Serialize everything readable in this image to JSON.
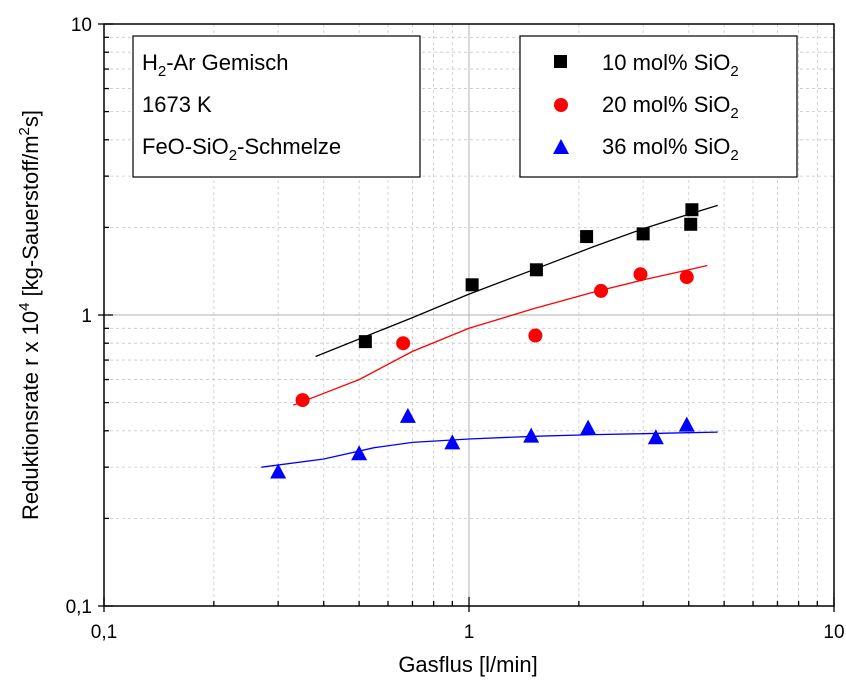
{
  "chart_data": {
    "type": "scatter",
    "xscale": "log",
    "yscale": "log",
    "xlim": [
      0.1,
      10
    ],
    "ylim": [
      0.1,
      10
    ],
    "xlabel": "Gasflus [l/min]",
    "ylabel": {
      "prefix": "Reduktionsrate r x 10",
      "exp": "4",
      "unit_prefix": " [kg-Sauerstoff/m",
      "unit_exp": "2",
      "unit_suffix": "s]"
    },
    "x_ticks": [
      {
        "value": 0.1,
        "label": "0,1"
      },
      {
        "value": 1,
        "label": "1"
      },
      {
        "value": 10,
        "label": "10"
      }
    ],
    "y_ticks": [
      {
        "value": 0.1,
        "label": "0,1"
      },
      {
        "value": 1,
        "label": "1"
      },
      {
        "value": 10,
        "label": "10"
      }
    ],
    "grid": "minor-dashed",
    "annotation_box": {
      "line1_pre": "H",
      "line1_sub": "2",
      "line1_post": "-Ar Gemisch",
      "line2": "1673 K",
      "line3_pre": "FeO-SiO",
      "line3_sub": "2",
      "line3_post": "-Schmelze"
    },
    "legend_position": "top-right",
    "series": [
      {
        "name": "10 mol% SiO2",
        "name_pre": "10 mol% SiO",
        "name_sub": "2",
        "marker": "square",
        "color": "#000000",
        "x": [
          0.52,
          1.02,
          1.53,
          2.1,
          3.0,
          4.05,
          4.08
        ],
        "y": [
          0.81,
          1.27,
          1.43,
          1.86,
          1.9,
          2.05,
          2.3
        ],
        "fit": {
          "x": [
            0.38,
            0.7,
            1.0,
            1.5,
            2.2,
            3.0,
            4.0,
            4.8
          ],
          "y": [
            0.72,
            0.98,
            1.18,
            1.43,
            1.72,
            1.98,
            2.22,
            2.38
          ]
        }
      },
      {
        "name": "20 mol% SiO2",
        "name_pre": "20 mol% SiO",
        "name_sub": "2",
        "marker": "circle",
        "color": "#ff0000",
        "x": [
          0.35,
          0.66,
          1.52,
          2.3,
          2.95,
          3.95
        ],
        "y": [
          0.51,
          0.8,
          0.85,
          1.21,
          1.38,
          1.35
        ],
        "fit": {
          "x": [
            0.33,
            0.5,
            0.7,
            1.0,
            1.5,
            2.2,
            3.0,
            4.0,
            4.5
          ],
          "y": [
            0.49,
            0.6,
            0.75,
            0.9,
            1.05,
            1.2,
            1.32,
            1.43,
            1.48
          ]
        }
      },
      {
        "name": "36 mol% SiO2",
        "name_pre": "36 mol% SiO",
        "name_sub": "2",
        "marker": "triangle",
        "color": "#0000ff",
        "x": [
          0.3,
          0.5,
          0.68,
          0.9,
          1.48,
          2.12,
          3.25,
          3.95
        ],
        "y": [
          0.29,
          0.335,
          0.45,
          0.365,
          0.385,
          0.41,
          0.38,
          0.42
        ],
        "fit": {
          "x": [
            0.27,
            0.4,
            0.55,
            0.7,
            1.0,
            1.5,
            2.2,
            3.0,
            4.0,
            4.8
          ],
          "y": [
            0.3,
            0.32,
            0.35,
            0.365,
            0.375,
            0.383,
            0.388,
            0.391,
            0.394,
            0.396
          ]
        }
      }
    ]
  }
}
